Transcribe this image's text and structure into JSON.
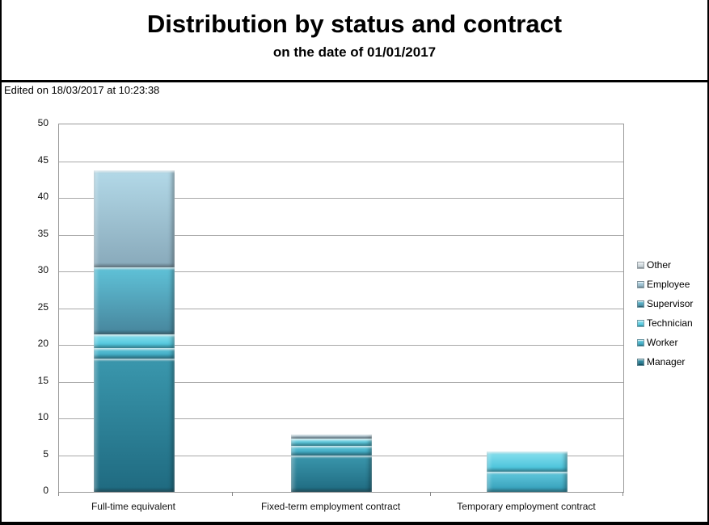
{
  "page": {
    "edited_note": "Edited on 18/03/2017 at 10:23:38"
  },
  "chart_data": {
    "type": "bar",
    "stacked": true,
    "title": "Distribution by status and contract",
    "subtitle": "on the date of 01/01/2017",
    "categories": [
      "Full-time equivalent",
      "Fixed-term employment contract",
      "Temporary employment contract"
    ],
    "series": [
      {
        "name": "Manager",
        "color": "#2a7f96",
        "grad_top": "#3a97ad",
        "grad_bottom": "#1f6a80",
        "values": [
          18.1,
          4.9,
          0
        ]
      },
      {
        "name": "Worker",
        "color": "#3fb0c9",
        "grad_top": "#62cade",
        "grad_bottom": "#319bb6",
        "values": [
          1.5,
          1.4,
          2.7
        ]
      },
      {
        "name": "Technician",
        "color": "#55cbe2",
        "grad_top": "#8ae2f0",
        "grad_bottom": "#3fbdd6",
        "values": [
          1.8,
          1.0,
          2.8
        ]
      },
      {
        "name": "Supervisor",
        "color": "#4ea4bc",
        "grad_top": "#5fc2d8",
        "grad_bottom": "#47859c",
        "values": [
          9.1,
          0,
          0
        ]
      },
      {
        "name": "Employee",
        "color": "#9cc0d1",
        "grad_top": "#b3d9e8",
        "grad_bottom": "#88a9ba",
        "values": [
          13.2,
          0.5,
          0
        ]
      },
      {
        "name": "Other",
        "color": "#cdd6db",
        "grad_top": "#e9eef0",
        "grad_bottom": "#b9c6cd",
        "values": [
          0,
          0,
          0
        ]
      }
    ],
    "totals": [
      43.7,
      7.8,
      5.5
    ],
    "legend": [
      "Other",
      "Employee",
      "Supervisor",
      "Technician",
      "Worker",
      "Manager"
    ],
    "legend_position": "right",
    "ylim": [
      0,
      50
    ],
    "ytick_step": 5,
    "grid": "horizontal",
    "xlabel": "",
    "ylabel": ""
  }
}
